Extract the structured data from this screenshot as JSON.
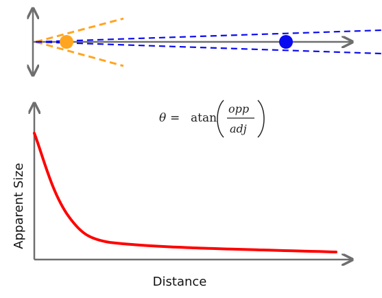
{
  "colors": {
    "axis": "#6e6e6e",
    "near_object": "#ffa51f",
    "far_object": "#0a0af0",
    "curve": "#ff0000"
  },
  "formula": {
    "theta": "θ",
    "equals": "=",
    "func": "atan",
    "numerator": "opp",
    "denominator": "adj"
  },
  "chart": {
    "xlabel": "Distance",
    "ylabel": "Apparent Size",
    "curve_style": "decreasing, inverse-proportional"
  },
  "sight_diagram": {
    "near_object": {
      "color_name": "orange",
      "line_style": "dashed"
    },
    "far_object": {
      "color_name": "blue",
      "line_style": "dashed"
    }
  }
}
